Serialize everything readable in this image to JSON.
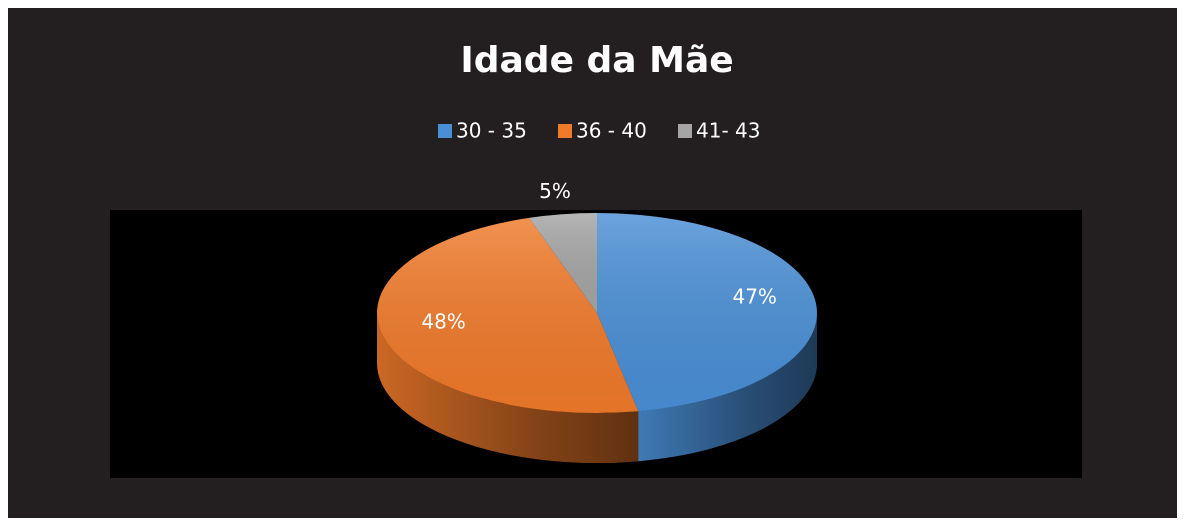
{
  "chart_data": {
    "type": "pie",
    "title": "Idade da Mãe",
    "categories": [
      "30 - 35",
      "36 - 40",
      "41- 43"
    ],
    "values": [
      47,
      48,
      5
    ],
    "value_labels": [
      "47%",
      "48%",
      "5%"
    ],
    "colors": [
      "#4a8fd6",
      "#f07a2a",
      "#a5a5a5"
    ],
    "legend": "top"
  }
}
